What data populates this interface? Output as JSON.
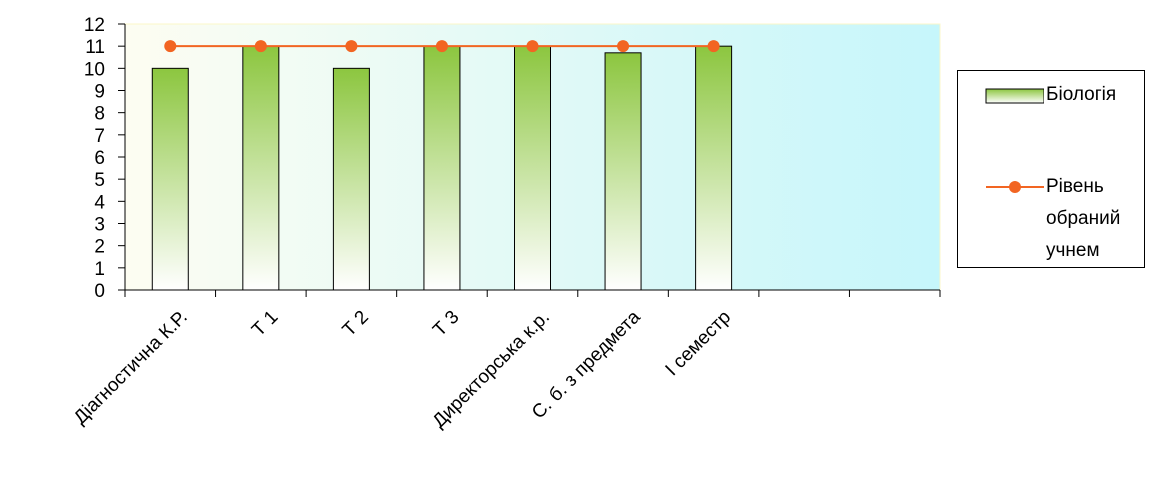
{
  "chart_data": {
    "type": "bar",
    "categories": [
      "Діагностична К.Р.",
      "Т 1",
      "Т 2",
      "Т 3",
      "Директорська к.р.",
      "С. б. з предмета",
      "І семестр",
      null,
      null
    ],
    "series": [
      {
        "name": "Біологія",
        "type": "bar",
        "color": "#8cc63f",
        "values": [
          10,
          11,
          10,
          11,
          11,
          10.7,
          11,
          null,
          null
        ]
      },
      {
        "name": "Рівень обраний учнем",
        "type": "line",
        "color": "#f26522",
        "values": [
          11,
          11,
          11,
          11,
          11,
          11,
          11,
          null,
          null
        ]
      }
    ],
    "ylim": [
      0,
      12
    ],
    "yticks": [
      0,
      1,
      2,
      3,
      4,
      5,
      6,
      7,
      8,
      9,
      10,
      11,
      12
    ],
    "legend": "right"
  }
}
